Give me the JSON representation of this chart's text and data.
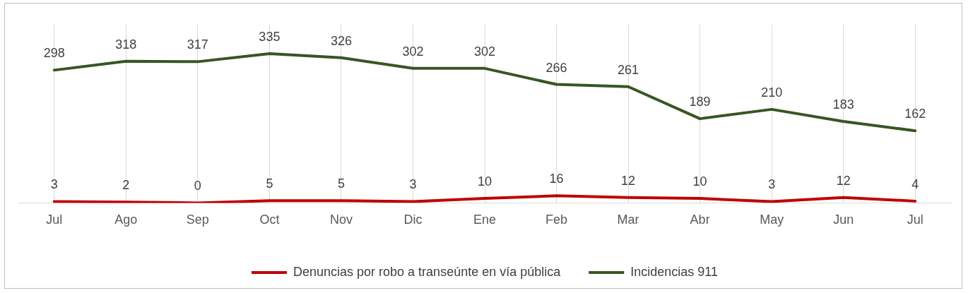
{
  "chart_data": {
    "type": "line",
    "categories": [
      "Jul",
      "Ago",
      "Sep",
      "Oct",
      "Nov",
      "Dic",
      "Ene",
      "Feb",
      "Mar",
      "Abr",
      "May",
      "Jun",
      "Jul"
    ],
    "series": [
      {
        "name": "Denuncias por robo a transeúnte en vía pública",
        "color": "#c00000",
        "values": [
          3,
          2,
          0,
          5,
          5,
          3,
          10,
          16,
          12,
          10,
          3,
          12,
          4
        ]
      },
      {
        "name": "Incidencias 911",
        "color": "#375623",
        "values": [
          298,
          318,
          317,
          335,
          326,
          302,
          302,
          266,
          261,
          189,
          210,
          183,
          162
        ]
      }
    ],
    "ylim": [
      0,
      400
    ],
    "tick_labels": "x",
    "grid": "x",
    "legend": "bottom",
    "marker": "none",
    "line_style": "solid",
    "data_labels": true
  }
}
